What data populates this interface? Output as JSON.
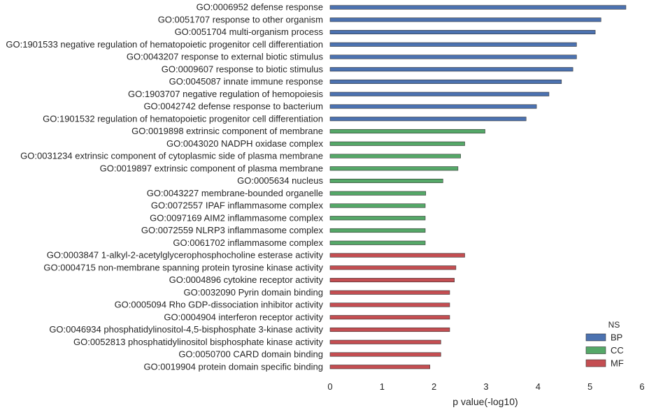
{
  "chart_data": {
    "type": "bar",
    "orientation": "horizontal",
    "title": "",
    "xlabel": "p value(-log10)",
    "ylabel": "",
    "xlim": [
      0,
      6
    ],
    "xticks": [
      "0",
      "1",
      "2",
      "3",
      "4",
      "5",
      "6"
    ],
    "grid": false,
    "legend": {
      "title": "NS",
      "placement": "bottom-right",
      "entries": [
        {
          "name": "BP",
          "color": "#4c72b0"
        },
        {
          "name": "CC",
          "color": "#55a868"
        },
        {
          "name": "MF",
          "color": "#c44e52"
        }
      ]
    },
    "bars": [
      {
        "label": "GO:0006952 defense response",
        "value": 5.69,
        "ns": "BP"
      },
      {
        "label": "GO:0051707 response to other organism",
        "value": 5.21,
        "ns": "BP"
      },
      {
        "label": "GO:0051704 multi-organism process",
        "value": 5.1,
        "ns": "BP"
      },
      {
        "label": "GO:1901533 negative regulation of hematopoietic progenitor cell differentiation",
        "value": 4.74,
        "ns": "BP"
      },
      {
        "label": "GO:0043207 response to external biotic stimulus",
        "value": 4.74,
        "ns": "BP"
      },
      {
        "label": "GO:0009607 response to biotic stimulus",
        "value": 4.67,
        "ns": "BP"
      },
      {
        "label": "GO:0045087 innate immune response",
        "value": 4.45,
        "ns": "BP"
      },
      {
        "label": "GO:1903707 negative regulation of hemopoiesis",
        "value": 4.21,
        "ns": "BP"
      },
      {
        "label": "GO:0042742 defense response to bacterium",
        "value": 3.97,
        "ns": "BP"
      },
      {
        "label": "GO:1901532 regulation of hematopoietic progenitor cell differentiation",
        "value": 3.77,
        "ns": "BP"
      },
      {
        "label": "GO:0019898 extrinsic component of membrane",
        "value": 2.98,
        "ns": "CC"
      },
      {
        "label": "GO:0043020 NADPH oxidase complex",
        "value": 2.59,
        "ns": "CC"
      },
      {
        "label": "GO:0031234 extrinsic component of cytoplasmic side of plasma membrane",
        "value": 2.51,
        "ns": "CC"
      },
      {
        "label": "GO:0019897 extrinsic component of plasma membrane",
        "value": 2.46,
        "ns": "CC"
      },
      {
        "label": "GO:0005634 nucleus",
        "value": 2.17,
        "ns": "CC"
      },
      {
        "label": "GO:0043227 membrane-bounded organelle",
        "value": 1.84,
        "ns": "CC"
      },
      {
        "label": "GO:0072557 IPAF inflammasome complex",
        "value": 1.83,
        "ns": "CC"
      },
      {
        "label": "GO:0097169 AIM2 inflammasome complex",
        "value": 1.83,
        "ns": "CC"
      },
      {
        "label": "GO:0072559 NLRP3 inflammasome complex",
        "value": 1.83,
        "ns": "CC"
      },
      {
        "label": "GO:0061702 inflammasome complex",
        "value": 1.83,
        "ns": "CC"
      },
      {
        "label": "GO:0003847 1-alkyl-2-acetylglycerophosphocholine esterase activity",
        "value": 2.59,
        "ns": "MF"
      },
      {
        "label": "GO:0004715 non-membrane spanning protein tyrosine kinase activity",
        "value": 2.42,
        "ns": "MF"
      },
      {
        "label": "GO:0004896 cytokine receptor activity",
        "value": 2.39,
        "ns": "MF"
      },
      {
        "label": "GO:0032090 Pyrin domain binding",
        "value": 2.3,
        "ns": "MF"
      },
      {
        "label": "GO:0005094 Rho GDP-dissociation inhibitor activity",
        "value": 2.3,
        "ns": "MF"
      },
      {
        "label": "GO:0004904 interferon receptor activity",
        "value": 2.3,
        "ns": "MF"
      },
      {
        "label": "GO:0046934 phosphatidylinositol-4,5-bisphosphate 3-kinase activity",
        "value": 2.3,
        "ns": "MF"
      },
      {
        "label": "GO:0052813 phosphatidylinositol bisphosphate kinase activity",
        "value": 2.13,
        "ns": "MF"
      },
      {
        "label": "GO:0050700 CARD domain binding",
        "value": 2.13,
        "ns": "MF"
      },
      {
        "label": "GO:0019904 protein domain specific binding",
        "value": 1.92,
        "ns": "MF"
      }
    ]
  }
}
